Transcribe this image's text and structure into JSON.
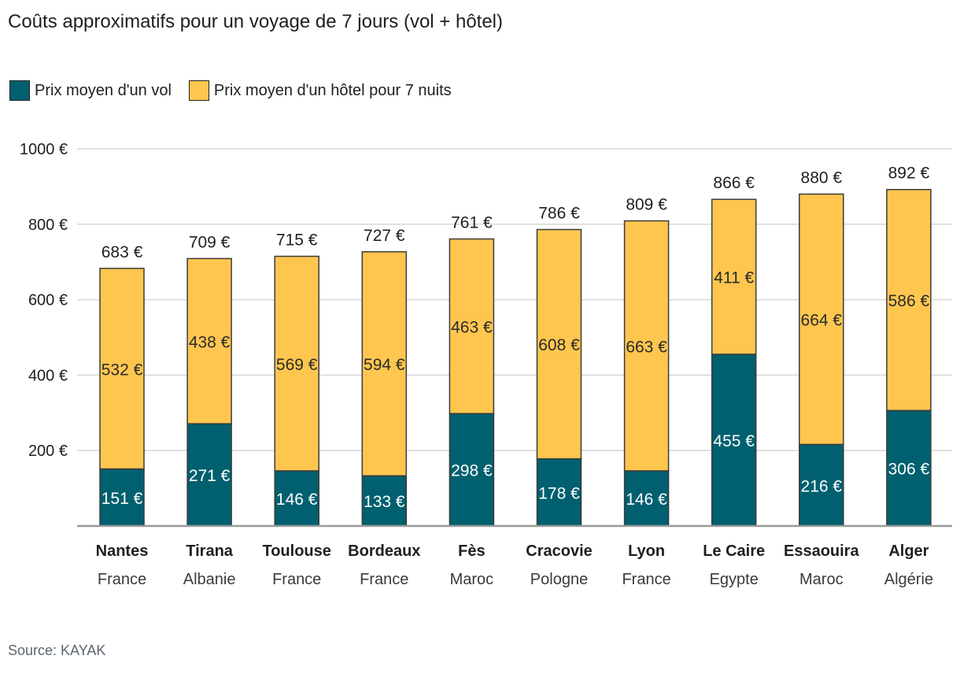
{
  "title": "Coûts approximatifs pour un voyage de 7 jours (vol + hôtel)",
  "source": "Source: KAYAK",
  "colors": {
    "flight": "#00606f",
    "hotel": "#ffc64f"
  },
  "chart_data": {
    "type": "bar",
    "stacked": true,
    "categories": [
      "Nantes",
      "Tirana",
      "Toulouse",
      "Bordeaux",
      "Fès",
      "Cracovie",
      "Lyon",
      "Le Caire",
      "Essaouira",
      "Alger"
    ],
    "countries": [
      "France",
      "Albanie",
      "France",
      "France",
      "Maroc",
      "Pologne",
      "France",
      "Egypte",
      "Maroc",
      "Algérie"
    ],
    "series": [
      {
        "name": "Prix moyen d'un vol",
        "values": [
          151,
          271,
          146,
          133,
          298,
          178,
          146,
          455,
          216,
          306
        ]
      },
      {
        "name": "Prix moyen d'un hôtel pour 7 nuits",
        "values": [
          532,
          438,
          569,
          594,
          463,
          608,
          663,
          411,
          664,
          586
        ]
      }
    ],
    "totals": [
      683,
      709,
      715,
      727,
      761,
      786,
      809,
      866,
      880,
      892
    ],
    "unit": "€",
    "ylim": [
      0,
      1000
    ],
    "yticks": [
      "200 €",
      "400 €",
      "600 €",
      "800 €",
      "1000 €"
    ],
    "ytick_values": [
      200,
      400,
      600,
      800,
      1000
    ],
    "legend_position": "top-left",
    "grid": true
  }
}
